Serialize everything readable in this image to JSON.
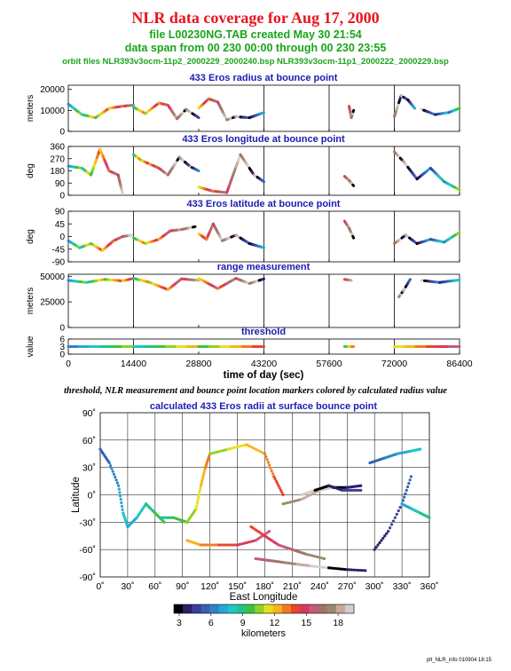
{
  "header": {
    "title": "NLR data coverage for Aug 17, 2000",
    "file_line": "file L00230NG.TAB created May 30 21:54",
    "span_line": "data span from 00 230 00:00 through 00 230 23:55",
    "orbit_line": "orbit files NLR393v3ocm-11p2_2000229_2000240.bsp NLR393v3ocm-11p1_2000222_2000229.bsp"
  },
  "caption": "threshold, NLR measurement and bounce point location markers colored by calculated radius value",
  "footer": "plt_NLR_info 010904 18:15",
  "colors": {
    "title": "#e8141e",
    "subtitle": "#1aa51a",
    "panel_title": "#1c1cb4",
    "palette": [
      "#000000",
      "#2c1f6a",
      "#3a3e99",
      "#3560b5",
      "#2d83c9",
      "#28a7d6",
      "#1fc7c6",
      "#22c38a",
      "#3ac43b",
      "#8ed321",
      "#e8df1c",
      "#f7b51a",
      "#ef7d20",
      "#e84430",
      "#d9385c",
      "#c65a7e",
      "#a1736b",
      "#9a8a6c",
      "#c9a899",
      "#d1cfd0"
    ]
  },
  "chart_data": [
    {
      "type": "line",
      "title": "433 Eros radius at bounce point",
      "ylabel": "meters",
      "yticks": [
        "0",
        "10000",
        "20000"
      ],
      "ylim": [
        0,
        22000
      ],
      "xlim": [
        0,
        86400
      ],
      "color_by": "calculated radius (km)",
      "segments": [
        {
          "x": [
            0,
            3000,
            6000,
            9000,
            12000,
            14400
          ],
          "y": [
            13000,
            8000,
            6500,
            11000,
            12000,
            12500
          ]
        },
        {
          "x": [
            14400,
            17000,
            20000,
            22000,
            24000,
            26000,
            28800
          ],
          "y": [
            11500,
            8500,
            13500,
            12500,
            6000,
            10500,
            6500
          ]
        },
        {
          "x": [
            28800,
            31000,
            33000,
            35000,
            37000,
            40000,
            43200
          ],
          "y": [
            11000,
            15500,
            14000,
            5500,
            7000,
            6500,
            9000
          ]
        },
        {
          "x": [
            62000,
            62500,
            63000
          ],
          "y": [
            12000,
            6500,
            10000
          ]
        },
        {
          "x": [
            72000,
            73500,
            75000,
            76500
          ],
          "y": [
            7000,
            17000,
            15000,
            11000
          ]
        },
        {
          "x": [
            78000,
            81000,
            84000,
            86400
          ],
          "y": [
            10500,
            8000,
            9000,
            11000
          ]
        }
      ]
    },
    {
      "type": "line",
      "title": "433 Eros longitude at bounce point",
      "ylabel": "deg",
      "yticks": [
        "0",
        "90",
        "180",
        "270",
        "360"
      ],
      "ylim": [
        0,
        360
      ],
      "xlim": [
        0,
        86400
      ],
      "segments": [
        {
          "x": [
            0,
            3000,
            5000,
            7000,
            9000,
            11000,
            12000
          ],
          "y": [
            215,
            200,
            150,
            340,
            180,
            150,
            10
          ]
        },
        {
          "x": [
            14400,
            16000,
            18000,
            20000,
            22000,
            24500,
            27000,
            28800
          ],
          "y": [
            300,
            260,
            230,
            200,
            150,
            280,
            210,
            180
          ]
        },
        {
          "x": [
            28800,
            32000,
            35000,
            38000,
            41000,
            43200
          ],
          "y": [
            60,
            30,
            20,
            300,
            150,
            100
          ]
        },
        {
          "x": [
            61000,
            62000,
            63000
          ],
          "y": [
            140,
            110,
            70
          ]
        },
        {
          "x": [
            72000,
            74000,
            77000,
            80000,
            83000,
            86400
          ],
          "y": [
            320,
            250,
            120,
            200,
            100,
            40
          ]
        }
      ]
    },
    {
      "type": "line",
      "title": "433 Eros latitude at bounce point",
      "ylabel": "deg",
      "yticks": [
        "-90",
        "-45",
        "0",
        "45",
        "90"
      ],
      "ylim": [
        -90,
        90
      ],
      "xlim": [
        0,
        86400
      ],
      "segments": [
        {
          "x": [
            0,
            2500,
            5000,
            7500,
            10000,
            12000,
            14000
          ],
          "y": [
            -15,
            -40,
            -25,
            -50,
            -15,
            0,
            5
          ]
        },
        {
          "x": [
            14400,
            17000,
            20000,
            22500,
            25000,
            28000
          ],
          "y": [
            -5,
            -25,
            -10,
            20,
            25,
            35
          ]
        },
        {
          "x": [
            28800,
            30500,
            32000,
            34000,
            37000,
            40000,
            43200
          ],
          "y": [
            10,
            -10,
            45,
            -15,
            5,
            -25,
            -40
          ]
        },
        {
          "x": [
            61000,
            62000,
            63000
          ],
          "y": [
            55,
            30,
            -5
          ]
        },
        {
          "x": [
            72000,
            74500,
            77000,
            80000,
            83000,
            86400
          ],
          "y": [
            -25,
            5,
            -25,
            -10,
            -20,
            15
          ]
        }
      ]
    },
    {
      "type": "line",
      "title": "range measurement",
      "ylabel": "meters",
      "yticks": [
        "0",
        "25000",
        "50000"
      ],
      "ylim": [
        0,
        52000
      ],
      "xlim": [
        0,
        86400
      ],
      "segments": [
        {
          "x": [
            0,
            4000,
            8000,
            12000,
            14400
          ],
          "y": [
            46000,
            44000,
            47000,
            45500,
            48000
          ]
        },
        {
          "x": [
            14400,
            18000,
            22000,
            25000,
            28800
          ],
          "y": [
            48000,
            44000,
            37000,
            47500,
            46000
          ]
        },
        {
          "x": [
            28800,
            33000,
            37000,
            40000,
            43200
          ],
          "y": [
            48000,
            38000,
            48000,
            43000,
            47500
          ]
        },
        {
          "x": [
            61000,
            62500
          ],
          "y": [
            47000,
            46000
          ]
        },
        {
          "x": [
            73000,
            74000,
            75500
          ],
          "y": [
            30000,
            36000,
            47000
          ]
        },
        {
          "x": [
            78000,
            82000,
            86400
          ],
          "y": [
            46000,
            44000,
            46500
          ]
        }
      ]
    },
    {
      "type": "line",
      "title": "threshold",
      "ylabel": "value",
      "yticks": [
        "0",
        "3",
        "6"
      ],
      "ylim": [
        0,
        6
      ],
      "xlabel": "time of day (sec)",
      "xticks": [
        "0",
        "14400",
        "28800",
        "43200",
        "57600",
        "72000",
        "86400"
      ],
      "xlim": [
        0,
        86400
      ],
      "segments": [
        {
          "x": [
            0,
            14400,
            28800,
            43200
          ],
          "y": [
            3,
            3,
            3,
            3
          ]
        },
        {
          "x": [
            61000,
            63000
          ],
          "y": [
            3,
            3
          ]
        },
        {
          "x": [
            72000,
            86400
          ],
          "y": [
            3,
            3
          ]
        }
      ]
    },
    {
      "type": "scatter",
      "title": "calculated 433 Eros radii at surface bounce point",
      "xlabel": "East Longitude",
      "ylabel": "Latitude",
      "xticks": [
        "0˚",
        "30˚",
        "60˚",
        "90˚",
        "120˚",
        "150˚",
        "180˚",
        "210˚",
        "240˚",
        "270˚",
        "300˚",
        "330˚",
        "360˚"
      ],
      "yticks": [
        "-90˚",
        "-60˚",
        "-30˚",
        "0˚",
        "30˚",
        "60˚",
        "90˚"
      ],
      "xlim": [
        0,
        360
      ],
      "ylim": [
        -90,
        90
      ],
      "grid": true,
      "tracks": [
        {
          "lon": [
            0,
            10,
            20,
            25,
            30
          ],
          "lat": [
            50,
            35,
            10,
            -20,
            -35
          ]
        },
        {
          "lon": [
            30,
            40,
            50,
            60,
            70
          ],
          "lat": [
            -35,
            -25,
            -10,
            -20,
            -30
          ]
        },
        {
          "lon": [
            65,
            80,
            95,
            105,
            110,
            115,
            120
          ],
          "lat": [
            -25,
            -25,
            -30,
            -15,
            10,
            30,
            45
          ]
        },
        {
          "lon": [
            120,
            140,
            160,
            180,
            190,
            200
          ],
          "lat": [
            45,
            50,
            55,
            45,
            20,
            0
          ]
        },
        {
          "lon": [
            95,
            110,
            130,
            150,
            170,
            185
          ],
          "lat": [
            -50,
            -55,
            -55,
            -55,
            -50,
            -40
          ]
        },
        {
          "lon": [
            165,
            180,
            195,
            210,
            225,
            245
          ],
          "lat": [
            -35,
            -45,
            -55,
            -60,
            -65,
            -70
          ]
        },
        {
          "lon": [
            170,
            185,
            200,
            215,
            230,
            250,
            270,
            290
          ],
          "lat": [
            -70,
            -72,
            -74,
            -76,
            -78,
            -80,
            -82,
            -83
          ]
        },
        {
          "lon": [
            200,
            220,
            240,
            255,
            270,
            285
          ],
          "lat": [
            -10,
            -5,
            5,
            8,
            8,
            10
          ]
        },
        {
          "lon": [
            220,
            235,
            250,
            265,
            285
          ],
          "lat": [
            0,
            5,
            10,
            5,
            5
          ]
        },
        {
          "lon": [
            300,
            315,
            330,
            340
          ],
          "lat": [
            -60,
            -40,
            -10,
            20
          ]
        },
        {
          "lon": [
            295,
            310,
            325,
            340,
            350
          ],
          "lat": [
            35,
            40,
            45,
            48,
            50
          ]
        },
        {
          "lon": [
            330,
            340,
            350,
            360
          ],
          "lat": [
            -10,
            -15,
            -20,
            -25
          ]
        }
      ]
    }
  ],
  "colorbar": {
    "label": "kilometers",
    "ticks": [
      "3",
      "6",
      "9",
      "12",
      "15",
      "18"
    ],
    "range": [
      2.5,
      19.5
    ]
  }
}
